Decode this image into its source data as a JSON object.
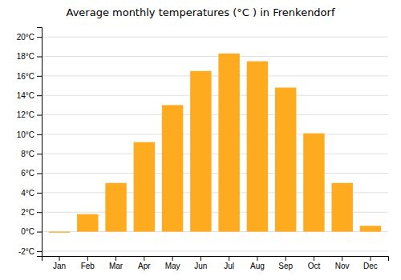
{
  "chart_data": {
    "type": "bar",
    "title": "Average monthly temperatures (°C ) in Frenkendorf",
    "categories": [
      "Jan",
      "Feb",
      "Mar",
      "Apr",
      "May",
      "Jun",
      "Jul",
      "Aug",
      "Sep",
      "Oct",
      "Nov",
      "Dec"
    ],
    "values": [
      -0.1,
      1.8,
      5.0,
      9.2,
      13.0,
      16.5,
      18.3,
      17.5,
      14.8,
      10.1,
      5.0,
      0.6
    ],
    "color": "#FFAB20",
    "ylim": [
      -2.5,
      21
    ],
    "yticks": [
      {
        "value": -2,
        "label": "-2°C"
      },
      {
        "value": 0,
        "label": "0°C"
      },
      {
        "value": 2,
        "label": "2°C"
      },
      {
        "value": 4,
        "label": "4°C"
      },
      {
        "value": 6,
        "label": "6°C"
      },
      {
        "value": 8,
        "label": "8°C"
      },
      {
        "value": 10,
        "label": "10°C"
      },
      {
        "value": 12,
        "label": "12°C"
      },
      {
        "value": 14,
        "label": "14°C"
      },
      {
        "value": 16,
        "label": "16°C"
      },
      {
        "value": 18,
        "label": "18°C"
      },
      {
        "value": 20,
        "label": "20°C"
      }
    ],
    "grid": true
  }
}
